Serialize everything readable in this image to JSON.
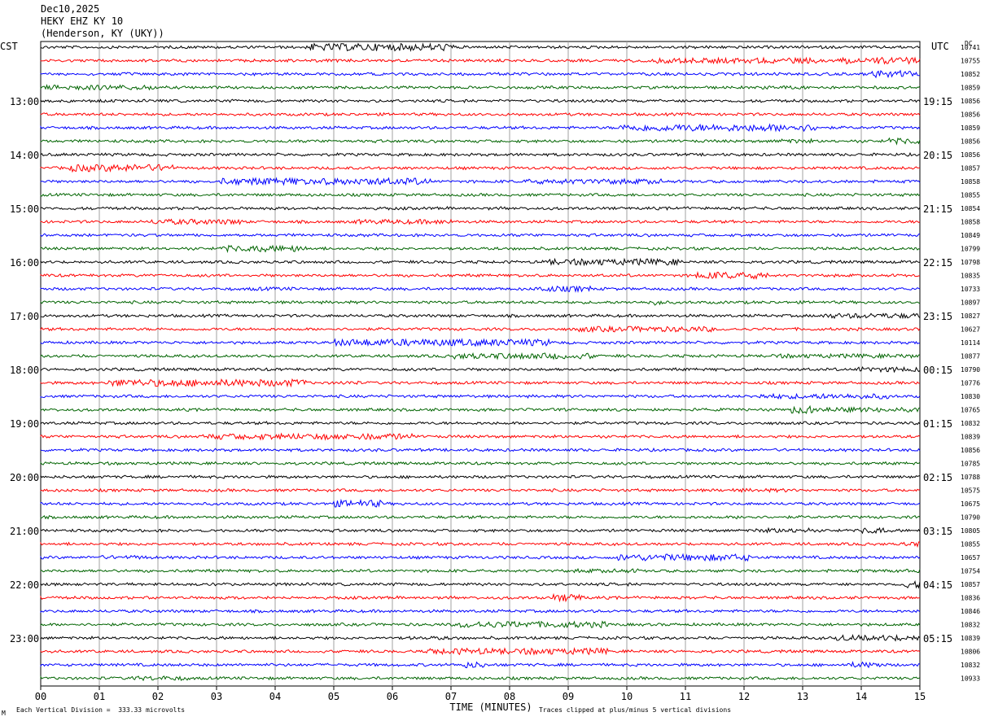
{
  "header": {
    "date": "Dec10,2025",
    "station": "HEKY EHZ KY 10",
    "location": "(Henderson, KY (UKY))"
  },
  "left_tz": "CST",
  "right_tz": "UTC",
  "right_col_header": "DC",
  "footer": {
    "scale": "Each Vertical Division =  333.33 microvolts",
    "clip": "Traces clipped at plus/minus 5 vertical divisions",
    "corner_mark": "M"
  },
  "colors": {
    "trace_cycle": [
      "#000000",
      "#ff0000",
      "#0000ff",
      "#006400"
    ],
    "grid": "#a0a0a0"
  },
  "chart_data": {
    "type": "line",
    "xlabel": "TIME (MINUTES)",
    "xlim": [
      0,
      15
    ],
    "x_ticks": [
      "00",
      "01",
      "02",
      "03",
      "04",
      "05",
      "06",
      "07",
      "08",
      "09",
      "10",
      "11",
      "12",
      "13",
      "14",
      "15"
    ],
    "rows_per_hour": 4,
    "row_count": 48,
    "left_hour_labels": [
      "13:00",
      "14:00",
      "15:00",
      "16:00",
      "17:00",
      "18:00",
      "19:00",
      "20:00",
      "21:00",
      "22:00",
      "23:00"
    ],
    "right_hour_labels": [
      "19:15",
      "20:15",
      "21:15",
      "22:15",
      "23:15",
      "00:15",
      "01:15",
      "02:15",
      "03:15",
      "04:15",
      "05:15"
    ],
    "right_values": [
      "10741",
      "10755",
      "10852",
      "10859",
      "10856",
      "10856",
      "10859",
      "10856",
      "10856",
      "10857",
      "10858",
      "10855",
      "10854",
      "10858",
      "10849",
      "10799",
      "10798",
      "10835",
      "10733",
      "10897",
      "10827",
      "10627",
      "10114",
      "10877",
      "10790",
      "10776",
      "10830",
      "10765",
      "10832",
      "10839",
      "10856",
      "10785",
      "10788",
      "10575",
      "10675",
      "10790",
      "10805",
      "10855",
      "10657",
      "10754",
      "10857",
      "10836",
      "10846",
      "10832",
      "10839",
      "10806",
      "10832",
      "10933"
    ]
  }
}
